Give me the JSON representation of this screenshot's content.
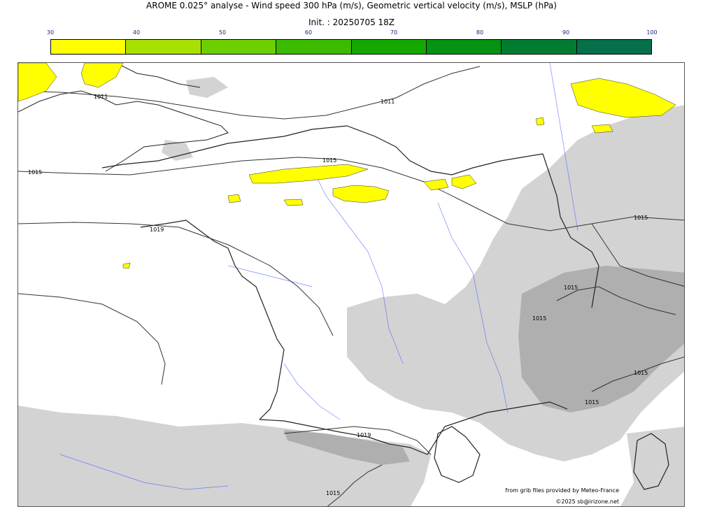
{
  "title": "AROME 0.025° analyse - Wind speed 300 hPa (m/s), Geometric vertical velocity (m/s), MSLP (hPa)",
  "subtitle": "Init. : 20250705 18Z",
  "colorbar": {
    "ticks": [
      "30",
      "40",
      "50",
      "60",
      "70",
      "80",
      "90",
      "100"
    ],
    "colors": [
      "#ffff00",
      "#a8e000",
      "#6ccf00",
      "#3cbb00",
      "#15a800",
      "#049312",
      "#027c30",
      "#06704a"
    ]
  },
  "isobar_labels": [
    "1011",
    "1011",
    "1015",
    "1015",
    "1019",
    "1015",
    "1015",
    "1019",
    "1015",
    "1015",
    "1015",
    "1015"
  ],
  "credits": {
    "source": "from grib files provided by Meteo-France",
    "copyright": "©2025 sb@irizone.net"
  }
}
